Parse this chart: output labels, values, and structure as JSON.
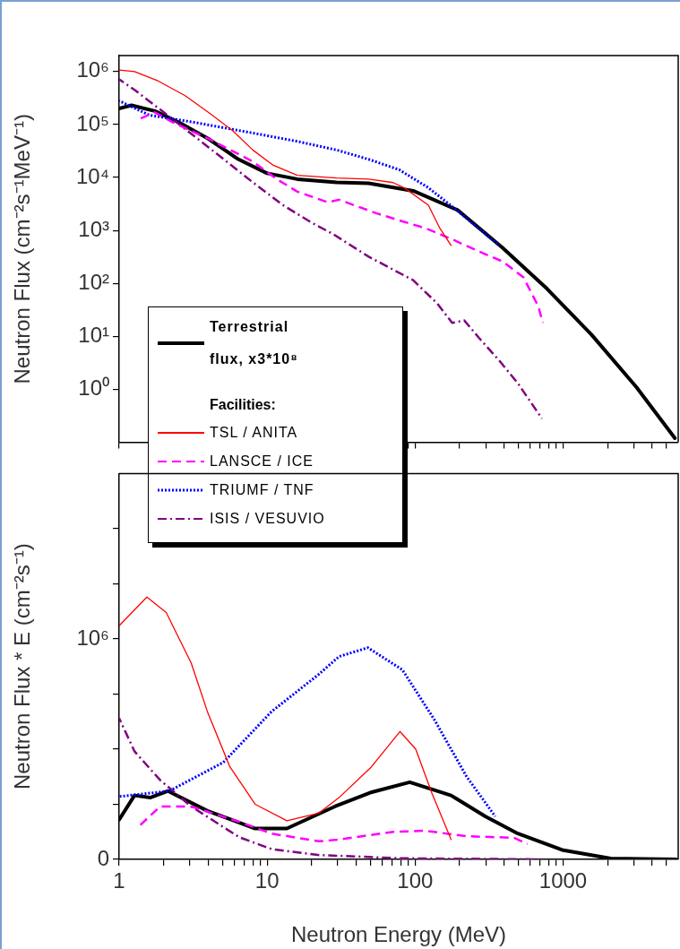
{
  "chart_data": [
    {
      "type": "line",
      "ylabel": "Neutron Flux (cm⁻²s⁻¹MeV⁻¹)",
      "log": "xy",
      "tick_labels": "y",
      "legend": "bottom left",
      "legend_title": "Facilities:",
      "line_style": "solid",
      "xlim": [
        1,
        6000
      ],
      "ylim": [
        0.1,
        2000000
      ],
      "xticks": [
        {
          "value": 1,
          "label": null
        },
        {
          "value": 2,
          "label": null
        },
        {
          "value": 3,
          "label": null
        },
        {
          "value": 4,
          "label": null
        },
        {
          "value": 5,
          "label": null
        },
        {
          "value": 6,
          "label": null
        },
        {
          "value": 7,
          "label": null
        },
        {
          "value": 8,
          "label": null
        },
        {
          "value": 9,
          "label": null
        },
        {
          "value": 10,
          "label": null
        },
        {
          "value": 20,
          "label": null
        },
        {
          "value": 30,
          "label": null
        },
        {
          "value": 40,
          "label": null
        },
        {
          "value": 50,
          "label": null
        },
        {
          "value": 60,
          "label": null
        },
        {
          "value": 70,
          "label": null
        },
        {
          "value": 80,
          "label": null
        },
        {
          "value": 90,
          "label": null
        },
        {
          "value": 100,
          "label": null
        },
        {
          "value": 200,
          "label": null
        },
        {
          "value": 300,
          "label": null
        },
        {
          "value": 400,
          "label": null
        },
        {
          "value": 500,
          "label": null
        },
        {
          "value": 600,
          "label": null
        },
        {
          "value": 700,
          "label": null
        },
        {
          "value": 800,
          "label": null
        },
        {
          "value": 900,
          "label": null
        },
        {
          "value": 1000,
          "label": null
        },
        {
          "value": 2000,
          "label": null
        },
        {
          "value": 3000,
          "label": null
        },
        {
          "value": 4000,
          "label": null
        },
        {
          "value": 5000,
          "label": null
        }
      ],
      "yticks": [
        {
          "value": 1,
          "label": "10⁰"
        },
        {
          "value": 10,
          "label": "10¹"
        },
        {
          "value": 100,
          "label": "10²"
        },
        {
          "value": 1000,
          "label": "10³"
        },
        {
          "value": 10000,
          "label": "10⁴"
        },
        {
          "value": 100000,
          "label": "10⁵"
        },
        {
          "value": 1000000,
          "label": "10⁶"
        }
      ],
      "series": [
        {
          "name": "Terrestrial flux, x3*10⁸",
          "color": "#000000",
          "x": [
            1,
            1.21,
            1.74,
            2.53,
            4.0,
            6.4,
            10,
            16,
            29.5,
            48.5,
            97,
            195,
            390,
            780,
            1560,
            3130,
            5700
          ],
          "values": [
            200000,
            230000,
            180000,
            110000,
            54000,
            22000,
            12000,
            9300,
            8100,
            7800,
            5600,
            2400,
            470,
            79,
            10.7,
            1.1,
            0.12
          ]
        },
        {
          "name": "TSL / ANITA",
          "color": "#ff0000",
          "x": [
            1,
            1.27,
            1.84,
            2.79,
            4.0,
            5.8,
            8.0,
            11,
            16,
            29.5,
            48.5,
            71,
            85,
            123,
            147,
            175
          ],
          "values": [
            1070000,
            1000000,
            660000,
            350000,
            170000,
            78000,
            33000,
            17000,
            11000,
            9800,
            9300,
            8000,
            6300,
            3000,
            1100,
            520
          ]
        },
        {
          "name": "LANSCE / ICE",
          "color": "#ff00ff",
          "line_style": "dashed",
          "x": [
            1.4,
            1.74,
            2.3,
            4.0,
            8,
            11.6,
            16,
            25.7,
            30.6,
            55,
            81,
            118,
            178,
            271,
            390,
            540,
            680,
            730
          ],
          "values": [
            130000,
            170000,
            110000,
            54000,
            20000,
            9300,
            5400,
            3400,
            3800,
            2100,
            1500,
            1100,
            680,
            400,
            260,
            130,
            37,
            18
          ]
        },
        {
          "name": "TRIUMF / TNF",
          "color": "#0000ff",
          "line_style": "dotted",
          "x": [
            1,
            1.6,
            3.2,
            8,
            16,
            29.5,
            48.5,
            78,
            123,
            195,
            282,
            370
          ],
          "values": [
            280000,
            150000,
            110000,
            69000,
            48000,
            33000,
            22000,
            14000,
            6400,
            2300,
            980,
            520
          ]
        },
        {
          "name": "ISIS / VESUVIO",
          "color": "#800080",
          "line_style": "dashdot",
          "x": [
            1,
            1.27,
            2.0,
            3.2,
            5.1,
            8,
            12.8,
            20,
            28,
            48.5,
            97,
            141,
            178,
            215,
            271,
            370,
            495,
            720
          ],
          "values": [
            710000,
            450000,
            170000,
            61000,
            22000,
            8100,
            3000,
            1400,
            850,
            320,
            115,
            42,
            18,
            20,
            9.3,
            3.5,
            1.3,
            0.28
          ]
        }
      ]
    },
    {
      "type": "line",
      "xlabel": "Neutron Energy (MeV)",
      "ylabel": "Neutron Flux * E (cm⁻²s⁻¹)",
      "log": "x",
      "line_style": "solid",
      "xlim": [
        1,
        6000
      ],
      "ylim": [
        0,
        1750000
      ],
      "xticks": [
        1,
        {
          "value": 2,
          "label": null
        },
        {
          "value": 3,
          "label": null
        },
        {
          "value": 4,
          "label": null
        },
        {
          "value": 5,
          "label": null
        },
        {
          "value": 6,
          "label": null
        },
        {
          "value": 7,
          "label": null
        },
        {
          "value": 8,
          "label": null
        },
        {
          "value": 9,
          "label": null
        },
        10,
        {
          "value": 20,
          "label": null
        },
        {
          "value": 30,
          "label": null
        },
        {
          "value": 40,
          "label": null
        },
        {
          "value": 50,
          "label": null
        },
        {
          "value": 60,
          "label": null
        },
        {
          "value": 70,
          "label": null
        },
        {
          "value": 80,
          "label": null
        },
        {
          "value": 90,
          "label": null
        },
        100,
        {
          "value": 200,
          "label": null
        },
        {
          "value": 300,
          "label": null
        },
        {
          "value": 400,
          "label": null
        },
        {
          "value": 500,
          "label": null
        },
        {
          "value": 600,
          "label": null
        },
        {
          "value": 700,
          "label": null
        },
        {
          "value": 800,
          "label": null
        },
        {
          "value": 900,
          "label": null
        },
        1000,
        {
          "value": 2000,
          "label": null
        },
        {
          "value": 3000,
          "label": null
        },
        {
          "value": 4000,
          "label": null
        },
        {
          "value": 5000,
          "label": null
        }
      ],
      "yticks": [
        0,
        {
          "value": 250000,
          "label": null
        },
        {
          "value": 500000,
          "label": null
        },
        {
          "value": 750000,
          "label": null
        },
        {
          "value": 1000000,
          "label": "10⁶"
        },
        {
          "value": 1250000,
          "label": null
        },
        {
          "value": 1500000,
          "label": null
        }
      ],
      "series": [
        {
          "color": "#000000",
          "x": [
            1,
            1.27,
            1.62,
            2.14,
            3.95,
            8.3,
            13.6,
            28.7,
            51,
            92,
            175,
            298,
            495,
            985,
            2100,
            5800
          ],
          "values": [
            180000,
            290000,
            280000,
            310000,
            220000,
            140000,
            140000,
            240000,
            305000,
            350000,
            290000,
            195000,
            117000,
            43000,
            4000,
            0
          ]
        },
        {
          "color": "#ff0000",
          "x": [
            1,
            1.54,
            2.08,
            3.07,
            3.95,
            5.6,
            8.3,
            13.6,
            22.4,
            30.6,
            50.7,
            79,
            101,
            130,
            175
          ],
          "values": [
            1060000,
            1190000,
            1120000,
            890000,
            670000,
            420000,
            250000,
            175000,
            210000,
            280000,
            420000,
            580000,
            500000,
            300000,
            90000
          ]
        },
        {
          "color": "#ff00ff",
          "line_style": "dashed",
          "x": [
            1.36,
            1.89,
            3.07,
            6.5,
            10.7,
            22.4,
            30.6,
            71.5,
            116,
            223,
            465,
            575
          ],
          "values": [
            150000,
            240000,
            240000,
            170000,
            117000,
            82000,
            90000,
            125000,
            130000,
            105000,
            98000,
            70000
          ]
        },
        {
          "color": "#0000ff",
          "line_style": "dotted",
          "x": [
            1,
            2.18,
            5.06,
            10.7,
            22.4,
            30.6,
            48,
            82,
            136,
            223,
            348
          ],
          "values": [
            285000,
            310000,
            440000,
            670000,
            840000,
            920000,
            960000,
            860000,
            630000,
            375000,
            195000
          ]
        },
        {
          "color": "#800080",
          "line_style": "dashdot",
          "x": [
            1,
            1.27,
            1.89,
            3.07,
            6.5,
            10.7,
            22,
            82,
            740
          ],
          "values": [
            640000,
            490000,
            360000,
            240000,
            100000,
            47000,
            20000,
            5000,
            0
          ]
        }
      ]
    }
  ]
}
